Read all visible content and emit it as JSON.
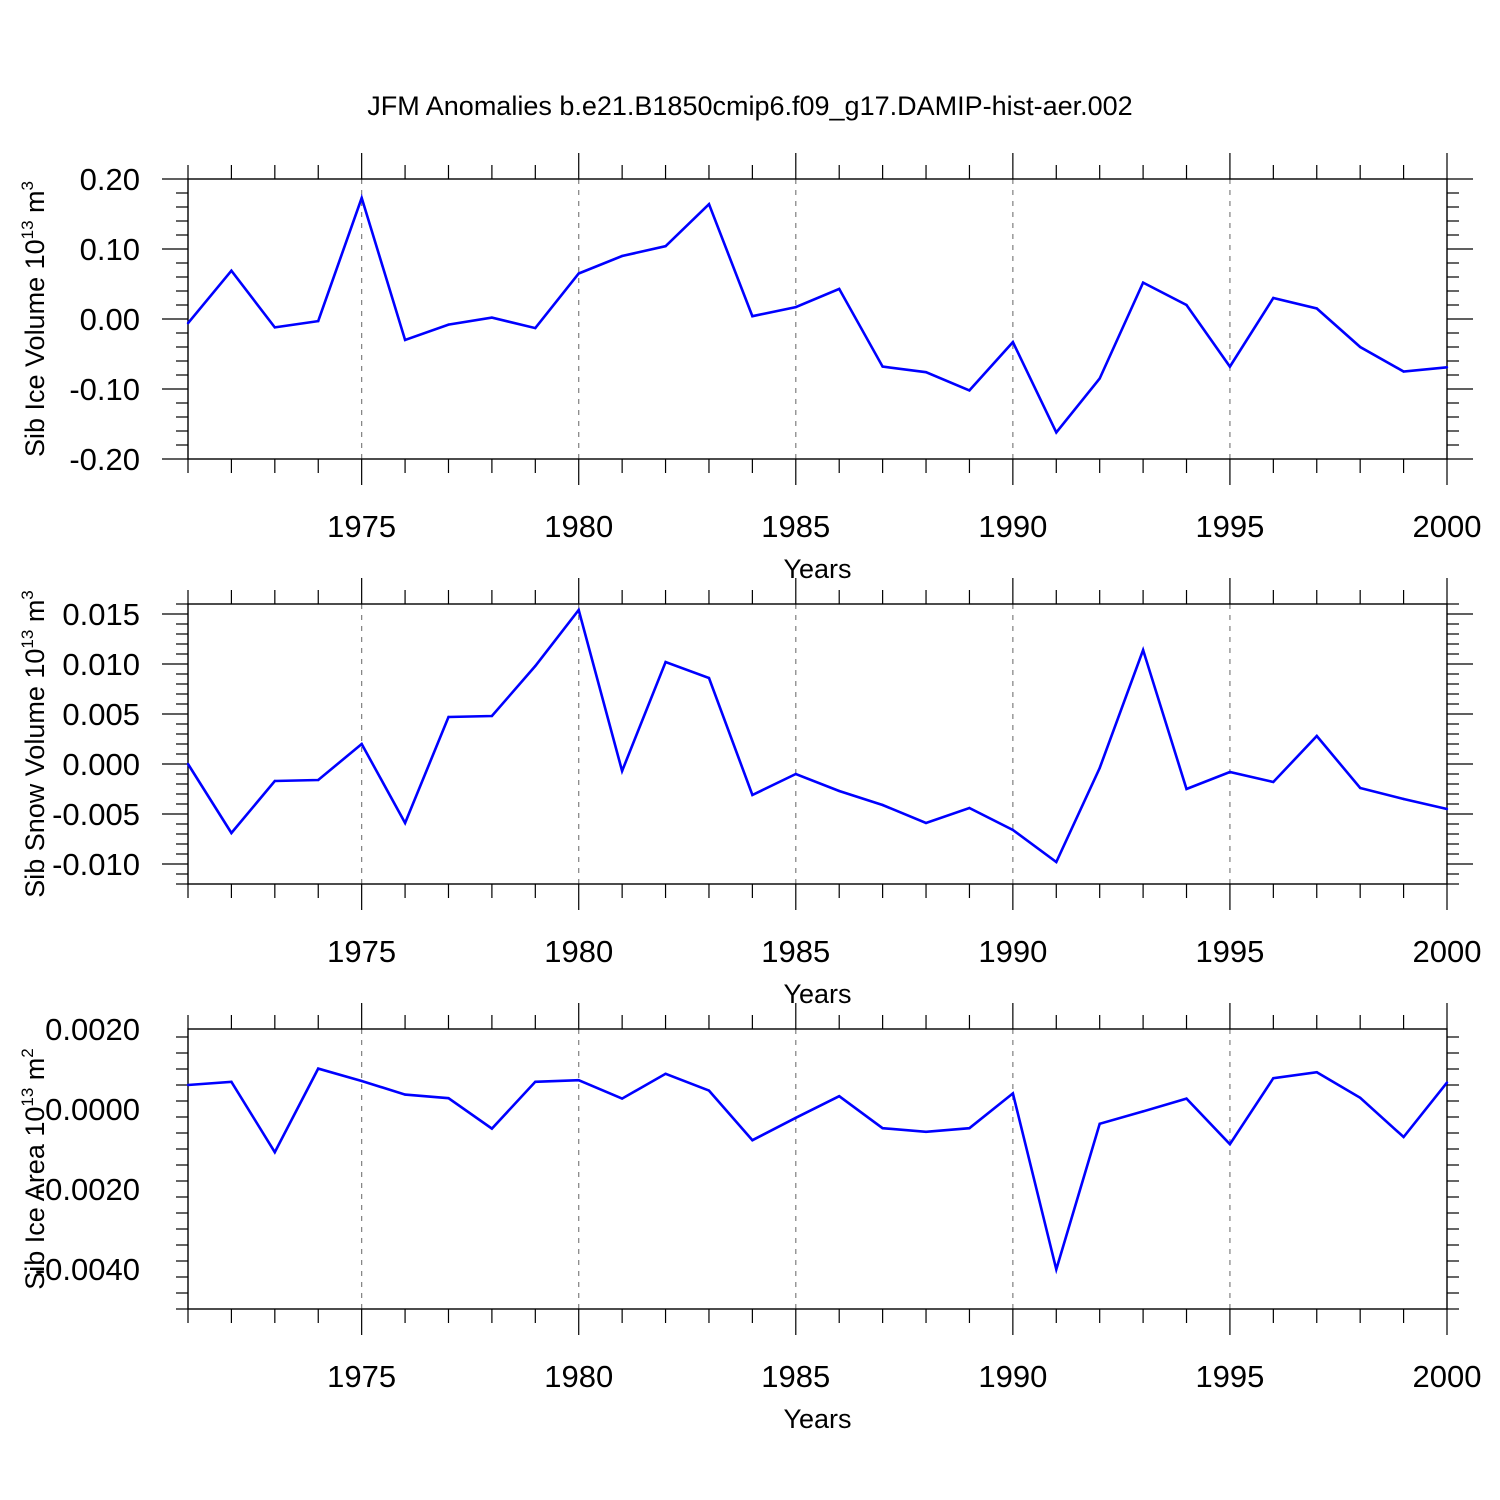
{
  "figure_title": "JFM Anomalies b.e21.B1850cmip6.f09_g17.DAMIP-hist-aer.002",
  "line_color": "#0000ff",
  "chart_data": [
    {
      "type": "line",
      "title": "JFM Anomalies b.e21.B1850cmip6.f09_g17.DAMIP-hist-aer.002",
      "ylabel_base": "Sib Ice Volume 10",
      "ylabel_exp": "13",
      "ylabel_unit": " m",
      "ylabel_unit_exp": "3",
      "xlabel": "Years",
      "xlim": [
        1971,
        2000
      ],
      "ylim": [
        -0.2,
        0.2
      ],
      "yticks": [
        -0.2,
        -0.1,
        0.0,
        0.1,
        0.2
      ],
      "ytick_labels": [
        "-0.20",
        "-0.10",
        "0.00",
        "0.10",
        "0.20"
      ],
      "xticks": [
        1975,
        1980,
        1985,
        1990,
        1995,
        2000
      ],
      "xtick_labels": [
        "1975",
        "1980",
        "1985",
        "1990",
        "1995",
        "2000"
      ],
      "x": [
        1971,
        1972,
        1973,
        1974,
        1975,
        1976,
        1977,
        1978,
        1979,
        1980,
        1981,
        1982,
        1983,
        1984,
        1985,
        1986,
        1987,
        1988,
        1989,
        1990,
        1991,
        1992,
        1993,
        1994,
        1995,
        1996,
        1997,
        1998,
        1999,
        2000
      ],
      "values": [
        -0.006,
        0.069,
        -0.012,
        -0.003,
        0.173,
        -0.03,
        -0.008,
        0.002,
        -0.013,
        0.065,
        0.09,
        0.104,
        0.164,
        0.004,
        0.017,
        0.043,
        -0.068,
        -0.076,
        -0.102,
        -0.033,
        -0.162,
        -0.085,
        0.052,
        0.02,
        -0.068,
        0.03,
        0.015,
        -0.04,
        -0.075,
        -0.069
      ]
    },
    {
      "type": "line",
      "ylabel_base": "Sib Snow Volume 10",
      "ylabel_exp": "13",
      "ylabel_unit": " m",
      "ylabel_unit_exp": "3",
      "xlabel": "Years",
      "xlim": [
        1971,
        2000
      ],
      "ylim": [
        -0.012,
        0.016
      ],
      "yticks": [
        -0.01,
        -0.005,
        0.0,
        0.005,
        0.01,
        0.015
      ],
      "ytick_labels": [
        "-0.010",
        "-0.005",
        "0.000",
        "0.005",
        "0.010",
        "0.015"
      ],
      "xticks": [
        1975,
        1980,
        1985,
        1990,
        1995,
        2000
      ],
      "xtick_labels": [
        "1975",
        "1980",
        "1985",
        "1990",
        "1995",
        "2000"
      ],
      "x": [
        1971,
        1972,
        1973,
        1974,
        1975,
        1976,
        1977,
        1978,
        1979,
        1980,
        1981,
        1982,
        1983,
        1984,
        1985,
        1986,
        1987,
        1988,
        1989,
        1990,
        1991,
        1992,
        1993,
        1994,
        1995,
        1996,
        1997,
        1998,
        1999,
        2000
      ],
      "values": [
        0.0,
        -0.0069,
        -0.0017,
        -0.0016,
        0.002,
        -0.0059,
        0.0047,
        0.0048,
        0.0098,
        0.0154,
        -0.0007,
        0.0102,
        0.0086,
        -0.0031,
        -0.001,
        -0.0027,
        -0.0041,
        -0.0059,
        -0.0044,
        -0.0066,
        -0.0098,
        -0.0004,
        0.0114,
        -0.0025,
        -0.0008,
        -0.0018,
        0.0028,
        -0.0024,
        -0.0035,
        -0.0045
      ]
    },
    {
      "type": "line",
      "ylabel_base": "Sib Ice Area 10",
      "ylabel_exp": "13",
      "ylabel_unit": " m",
      "ylabel_unit_exp": "2",
      "xlabel": "Years",
      "xlim": [
        1971,
        2000
      ],
      "ylim": [
        -0.005,
        0.002
      ],
      "yticks": [
        -0.004,
        -0.002,
        0.0,
        0.002
      ],
      "ytick_labels": [
        "-0.0040",
        "-0.0020",
        "0.0000",
        "0.0020"
      ],
      "xticks": [
        1975,
        1980,
        1985,
        1990,
        1995,
        2000
      ],
      "xtick_labels": [
        "1975",
        "1980",
        "1985",
        "1990",
        "1995",
        "2000"
      ],
      "x": [
        1971,
        1972,
        1973,
        1974,
        1975,
        1976,
        1977,
        1978,
        1979,
        1980,
        1981,
        1982,
        1983,
        1984,
        1985,
        1986,
        1987,
        1988,
        1989,
        1990,
        1991,
        1992,
        1993,
        1994,
        1995,
        1996,
        1997,
        1998,
        1999,
        2000
      ],
      "values": [
        0.0006,
        0.00068,
        -0.00108,
        0.00101,
        0.0007,
        0.00036,
        0.00027,
        -0.00049,
        0.00068,
        0.00072,
        0.00026,
        0.00088,
        0.00046,
        -0.00078,
        -0.00022,
        0.00032,
        -0.00048,
        -0.00057,
        -0.00048,
        0.00039,
        -0.00401,
        -0.00037,
        -6e-05,
        0.00026,
        -0.00088,
        0.00077,
        0.00092,
        0.00028,
        -0.0007,
        0.00066
      ]
    }
  ]
}
